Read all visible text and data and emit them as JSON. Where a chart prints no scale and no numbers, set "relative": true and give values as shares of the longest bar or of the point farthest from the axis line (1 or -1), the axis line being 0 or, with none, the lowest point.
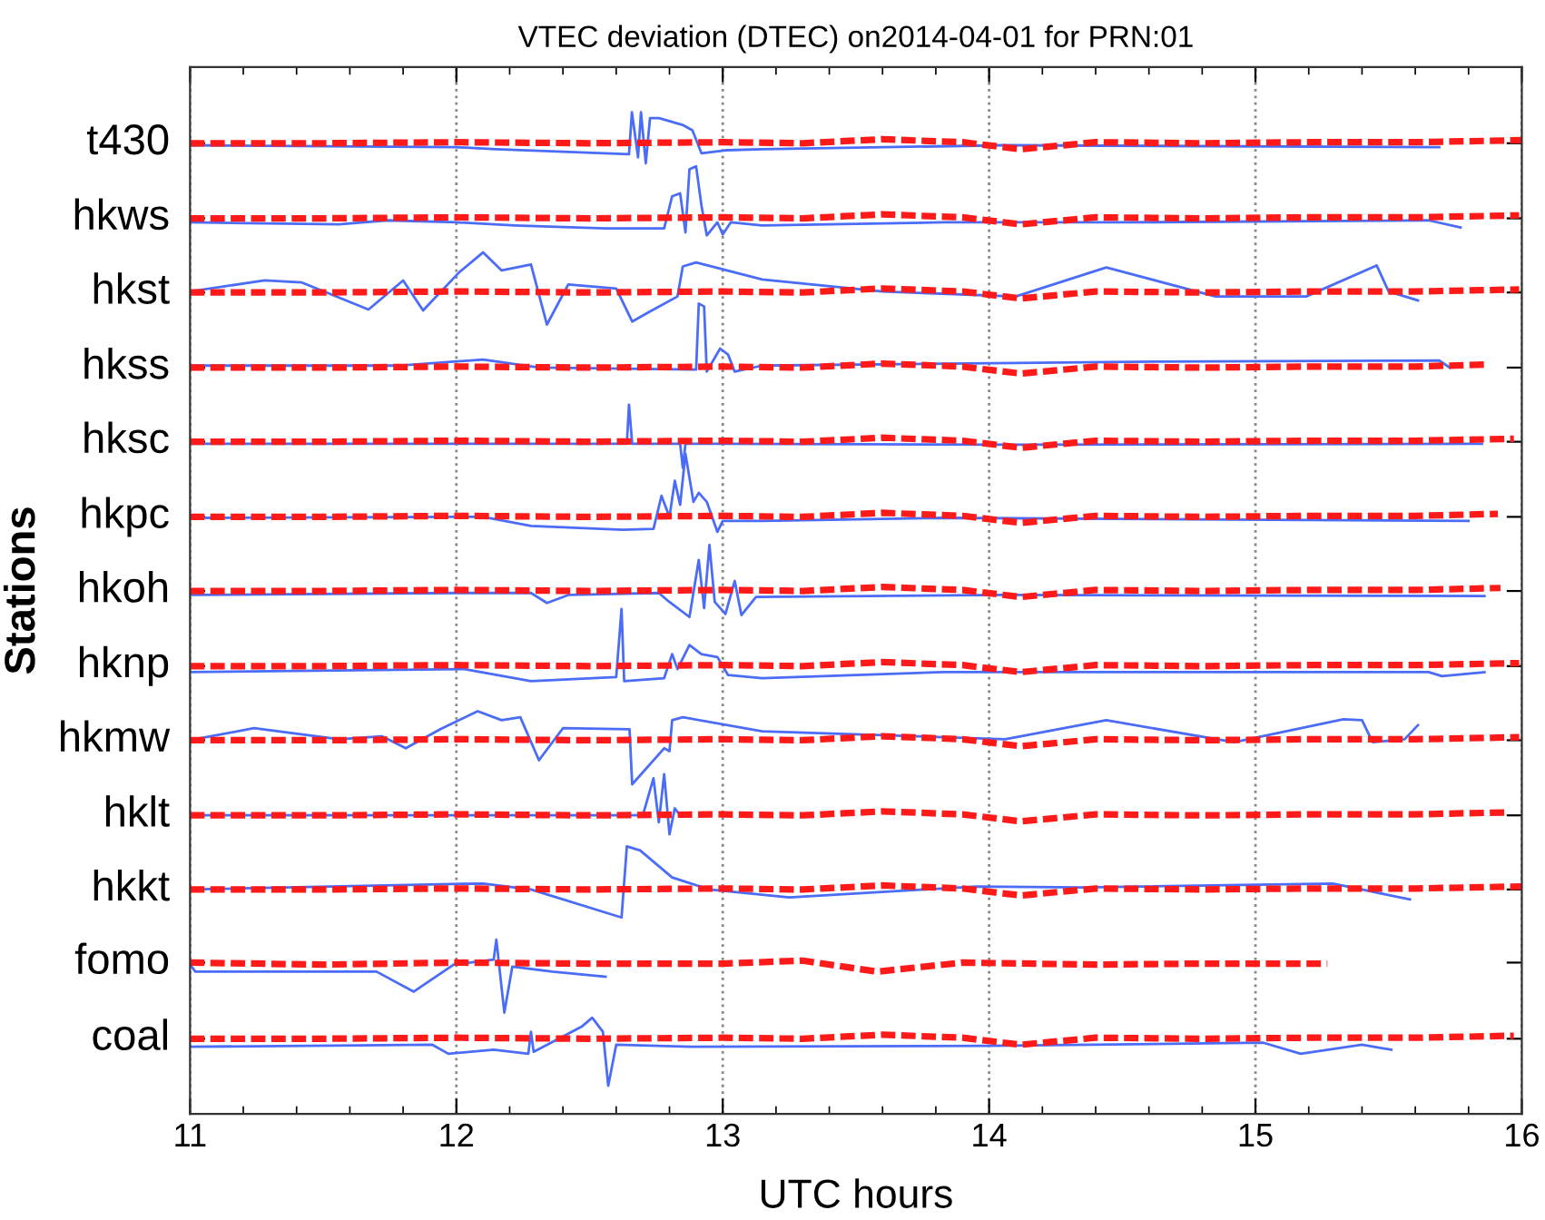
{
  "chart_data": {
    "type": "line",
    "relative": true,
    "title": "VTEC deviation (DTEC) on2014-04-01 for PRN:01",
    "xlabel": "UTC hours",
    "ylabel": "Stations",
    "xlim": [
      11,
      16
    ],
    "xticks": [
      11,
      12,
      13,
      14,
      15,
      16
    ],
    "grid": "x",
    "legend": false,
    "series": [
      {
        "color": "#4a6cf7",
        "line_style": "solid",
        "x": [
          11.0,
          12.0,
          12.15,
          12.648,
          12.659,
          12.682,
          12.693,
          12.711,
          12.727,
          12.761,
          12.852,
          12.886,
          12.92,
          13.011,
          13.148,
          14.06,
          15.69
        ],
        "values": [
          0.967,
          0.965,
          0.963,
          0.958,
          1.0,
          0.955,
          1.0,
          0.949,
          0.994,
          0.994,
          0.987,
          0.982,
          0.959,
          0.962,
          0.963,
          0.967,
          0.965
        ]
      },
      {
        "name": "t430",
        "color": "#ff1a1a",
        "line_style": "dashed",
        "x": [
          11,
          11.5,
          12,
          12.5,
          13,
          13.3,
          13.6,
          13.9,
          14.12,
          14.4,
          14.8,
          15.2,
          15.6,
          16.0
        ],
        "values": [
          0.969,
          0.969,
          0.97,
          0.969,
          0.97,
          0.969,
          0.973,
          0.97,
          0.963,
          0.97,
          0.969,
          0.97,
          0.97,
          0.972
        ]
      },
      {
        "color": "#4a6cf7",
        "line_style": "solid",
        "x": [
          11.0,
          11.56,
          11.74,
          12.0,
          12.22,
          12.56,
          12.78,
          12.81,
          12.84,
          12.86,
          12.875,
          12.9,
          12.92,
          12.94,
          12.98,
          13.0,
          13.03,
          13.148,
          13.83,
          14.51,
          15.65,
          15.77
        ],
        "values": [
          0.89,
          0.888,
          0.892,
          0.89,
          0.887,
          0.884,
          0.884,
          0.916,
          0.919,
          0.88,
          0.943,
          0.946,
          0.907,
          0.877,
          0.89,
          0.878,
          0.89,
          0.887,
          0.89,
          0.89,
          0.892,
          0.885
        ]
      },
      {
        "name": "hkws",
        "color": "#ff1a1a",
        "line_style": "dashed",
        "x": [
          11,
          11.5,
          12,
          12.5,
          13,
          13.3,
          13.6,
          13.9,
          14.12,
          14.4,
          14.8,
          15.2,
          15.6,
          15.99
        ],
        "values": [
          0.894,
          0.894,
          0.895,
          0.894,
          0.895,
          0.894,
          0.898,
          0.895,
          0.888,
          0.895,
          0.894,
          0.895,
          0.895,
          0.897
        ]
      },
      {
        "color": "#4a6cf7",
        "line_style": "solid",
        "x": [
          11.0,
          11.28,
          11.42,
          11.67,
          11.8,
          11.875,
          12.01,
          12.1,
          12.17,
          12.28,
          12.34,
          12.42,
          12.6,
          12.66,
          12.72,
          12.83,
          12.85,
          12.9,
          13.148,
          13.6,
          14.1,
          14.44,
          14.85,
          15.19,
          15.455,
          15.5,
          15.61
        ],
        "values": [
          0.821,
          0.832,
          0.83,
          0.803,
          0.832,
          0.802,
          0.84,
          0.86,
          0.842,
          0.848,
          0.788,
          0.828,
          0.824,
          0.791,
          0.8,
          0.816,
          0.846,
          0.85,
          0.833,
          0.821,
          0.816,
          0.845,
          0.816,
          0.816,
          0.847,
          0.821,
          0.812
        ]
      },
      {
        "name": "hkst",
        "color": "#ff1a1a",
        "line_style": "dashed",
        "x": [
          11,
          11.5,
          12,
          12.5,
          13,
          13.3,
          13.6,
          13.9,
          14.12,
          14.4,
          14.8,
          15.2,
          15.6,
          15.99
        ],
        "values": [
          0.82,
          0.82,
          0.821,
          0.82,
          0.821,
          0.82,
          0.824,
          0.821,
          0.814,
          0.821,
          0.82,
          0.821,
          0.821,
          0.823
        ]
      },
      {
        "color": "#4a6cf7",
        "line_style": "solid",
        "x": [
          11.0,
          11.78,
          12.1,
          12.31,
          12.9,
          12.91,
          12.93,
          12.94,
          12.99,
          13.02,
          13.045,
          13.148,
          14.63,
          15.69,
          15.73
        ],
        "values": [
          0.747,
          0.747,
          0.753,
          0.745,
          0.743,
          0.809,
          0.806,
          0.741,
          0.764,
          0.758,
          0.741,
          0.747,
          0.751,
          0.752,
          0.745
        ]
      },
      {
        "name": "hkss",
        "color": "#ff1a1a",
        "line_style": "dashed",
        "x": [
          11,
          11.5,
          12,
          12.5,
          13,
          13.3,
          13.6,
          13.9,
          14.12,
          14.4,
          14.8,
          15.2,
          15.6,
          15.86
        ],
        "values": [
          0.745,
          0.745,
          0.746,
          0.745,
          0.746,
          0.745,
          0.749,
          0.746,
          0.739,
          0.746,
          0.745,
          0.746,
          0.746,
          0.748
        ]
      },
      {
        "color": "#4a6cf7",
        "line_style": "solid",
        "x": [
          11.0,
          12.0,
          12.64,
          12.648,
          12.66,
          12.84,
          12.85,
          12.86,
          13.0,
          14.1,
          15.85
        ],
        "values": [
          0.669,
          0.669,
          0.669,
          0.708,
          0.669,
          0.669,
          0.645,
          0.669,
          0.669,
          0.668,
          0.669
        ]
      },
      {
        "name": "hksc",
        "color": "#ff1a1a",
        "line_style": "dashed",
        "x": [
          11,
          11.5,
          12,
          12.5,
          13,
          13.3,
          13.6,
          13.9,
          14.12,
          14.4,
          14.8,
          15.2,
          15.6,
          15.97
        ],
        "values": [
          0.671,
          0.671,
          0.672,
          0.671,
          0.672,
          0.671,
          0.675,
          0.672,
          0.665,
          0.672,
          0.671,
          0.672,
          0.672,
          0.674
        ]
      },
      {
        "color": "#4a6cf7",
        "line_style": "solid",
        "x": [
          11.0,
          12.1,
          12.28,
          12.625,
          12.74,
          12.77,
          12.8,
          12.82,
          12.84,
          12.86,
          12.89,
          12.91,
          12.94,
          12.98,
          13.0,
          13.148,
          13.83,
          15.8
        ],
        "values": [
          0.595,
          0.596,
          0.587,
          0.583,
          0.584,
          0.617,
          0.596,
          0.632,
          0.608,
          0.659,
          0.611,
          0.62,
          0.611,
          0.581,
          0.592,
          0.592,
          0.595,
          0.592
        ]
      },
      {
        "name": "hkpc",
        "color": "#ff1a1a",
        "line_style": "dashed",
        "x": [
          11,
          11.5,
          12,
          12.5,
          13,
          13.3,
          13.6,
          13.9,
          14.12,
          14.4,
          14.8,
          15.2,
          15.6,
          15.91
        ],
        "values": [
          0.596,
          0.596,
          0.597,
          0.596,
          0.597,
          0.596,
          0.6,
          0.597,
          0.59,
          0.597,
          0.596,
          0.597,
          0.597,
          0.599
        ]
      },
      {
        "color": "#4a6cf7",
        "line_style": "solid",
        "x": [
          11.0,
          12.0,
          12.28,
          12.34,
          12.42,
          12.76,
          12.8,
          12.875,
          12.91,
          12.93,
          12.95,
          12.97,
          13.01,
          13.045,
          13.07,
          13.125,
          14.06,
          15.86
        ],
        "values": [
          0.518,
          0.52,
          0.52,
          0.51,
          0.518,
          0.52,
          0.511,
          0.496,
          0.553,
          0.505,
          0.568,
          0.511,
          0.499,
          0.532,
          0.498,
          0.516,
          0.518,
          0.517
        ]
      },
      {
        "name": "hkoh",
        "color": "#ff1a1a",
        "line_style": "dashed",
        "x": [
          11,
          11.5,
          12,
          12.5,
          13,
          13.3,
          13.6,
          13.9,
          14.12,
          14.4,
          14.8,
          15.2,
          15.6,
          15.92
        ],
        "values": [
          0.522,
          0.522,
          0.523,
          0.522,
          0.523,
          0.522,
          0.526,
          0.523,
          0.516,
          0.523,
          0.522,
          0.523,
          0.523,
          0.525
        ]
      },
      {
        "color": "#4a6cf7",
        "line_style": "solid",
        "x": [
          11.0,
          12.03,
          12.28,
          12.6,
          12.62,
          12.63,
          12.78,
          12.81,
          12.83,
          12.875,
          12.92,
          12.98,
          13.02,
          13.148,
          13.83,
          15.65,
          15.7,
          15.86
        ],
        "values": [
          0.441,
          0.444,
          0.432,
          0.436,
          0.504,
          0.432,
          0.435,
          0.459,
          0.444,
          0.468,
          0.459,
          0.456,
          0.438,
          0.435,
          0.441,
          0.441,
          0.437,
          0.441
        ]
      },
      {
        "name": "hknp",
        "color": "#ff1a1a",
        "line_style": "dashed",
        "x": [
          11,
          11.5,
          12,
          12.5,
          13,
          13.3,
          13.6,
          13.9,
          14.12,
          14.4,
          14.8,
          15.2,
          15.6,
          15.99
        ],
        "values": [
          0.447,
          0.447,
          0.448,
          0.447,
          0.448,
          0.447,
          0.451,
          0.448,
          0.441,
          0.448,
          0.447,
          0.448,
          0.448,
          0.45
        ]
      },
      {
        "color": "#4a6cf7",
        "line_style": "solid",
        "x": [
          11.0,
          11.24,
          11.56,
          11.72,
          11.81,
          11.94,
          12.08,
          12.17,
          12.24,
          12.31,
          12.4,
          12.65,
          12.66,
          12.78,
          12.8,
          12.81,
          12.85,
          13.148,
          14.06,
          14.44,
          14.92,
          15.33,
          15.4,
          15.44,
          15.56,
          15.61
        ],
        "values": [
          0.373,
          0.385,
          0.374,
          0.377,
          0.365,
          0.384,
          0.402,
          0.393,
          0.396,
          0.353,
          0.385,
          0.384,
          0.329,
          0.365,
          0.362,
          0.393,
          0.396,
          0.382,
          0.374,
          0.393,
          0.371,
          0.394,
          0.393,
          0.371,
          0.374,
          0.388
        ]
      },
      {
        "name": "hkmw",
        "color": "#ff1a1a",
        "line_style": "dashed",
        "x": [
          11,
          11.5,
          12,
          12.5,
          13,
          13.3,
          13.6,
          13.9,
          14.12,
          14.4,
          14.8,
          15.2,
          15.6,
          15.99
        ],
        "values": [
          0.373,
          0.373,
          0.374,
          0.373,
          0.374,
          0.373,
          0.377,
          0.374,
          0.367,
          0.374,
          0.373,
          0.374,
          0.374,
          0.376
        ]
      },
      {
        "color": "#4a6cf7",
        "line_style": "solid",
        "x": [
          11.0,
          12.0,
          12.5,
          12.7,
          12.74,
          12.76,
          12.78,
          12.8,
          12.82,
          12.84
        ],
        "values": [
          0.298,
          0.298,
          0.298,
          0.298,
          0.335,
          0.291,
          0.339,
          0.279,
          0.305,
          0.298
        ]
      },
      {
        "name": "hklt",
        "color": "#ff1a1a",
        "line_style": "dashed",
        "x": [
          11,
          11.5,
          12,
          12.5,
          13,
          13.3,
          13.6,
          13.9,
          14.12,
          14.4,
          14.8,
          15.2,
          15.6,
          15.95
        ],
        "values": [
          0.298,
          0.298,
          0.299,
          0.298,
          0.299,
          0.298,
          0.302,
          0.299,
          0.292,
          0.299,
          0.298,
          0.299,
          0.299,
          0.301
        ]
      },
      {
        "color": "#4a6cf7",
        "line_style": "solid",
        "x": [
          11.0,
          12.1,
          12.28,
          12.62,
          12.64,
          12.69,
          12.81,
          12.95,
          13.25,
          13.95,
          14.36,
          15.29,
          15.4,
          15.58
        ],
        "values": [
          0.224,
          0.23,
          0.224,
          0.196,
          0.267,
          0.263,
          0.236,
          0.224,
          0.216,
          0.227,
          0.226,
          0.23,
          0.224,
          0.214
        ]
      },
      {
        "name": "hkkt",
        "color": "#ff1a1a",
        "line_style": "dashed",
        "x": [
          11,
          11.5,
          12,
          12.5,
          13,
          13.3,
          13.6,
          13.9,
          14.12,
          14.4,
          14.8,
          15.2,
          15.6,
          16.0
        ],
        "values": [
          0.224,
          0.224,
          0.225,
          0.224,
          0.225,
          0.224,
          0.228,
          0.225,
          0.218,
          0.225,
          0.224,
          0.225,
          0.225,
          0.227
        ]
      },
      {
        "color": "#4a6cf7",
        "line_style": "solid",
        "x": [
          11.0,
          11.02,
          11.7,
          11.84,
          11.99,
          12.14,
          12.15,
          12.18,
          12.21,
          12.36,
          12.56
        ],
        "values": [
          0.149,
          0.142,
          0.142,
          0.122,
          0.149,
          0.154,
          0.174,
          0.101,
          0.147,
          0.142,
          0.137
        ]
      },
      {
        "name": "fomo",
        "color": "#ff1a1a",
        "line_style": "dashed",
        "x": [
          11,
          11.5,
          12,
          12.5,
          13,
          13.3,
          13.58,
          13.9,
          14.4,
          14.8,
          15.27
        ],
        "values": [
          0.151,
          0.149,
          0.151,
          0.15,
          0.15,
          0.153,
          0.142,
          0.151,
          0.149,
          0.15,
          0.15
        ]
      },
      {
        "color": "#4a6cf7",
        "line_style": "solid",
        "x": [
          11.0,
          11.91,
          11.97,
          12.14,
          12.27,
          12.28,
          12.29,
          12.47,
          12.51,
          12.55,
          12.57,
          12.6,
          12.88,
          13.99,
          15.03,
          15.17,
          15.4,
          15.51
        ],
        "values": [
          0.067,
          0.069,
          0.06,
          0.064,
          0.06,
          0.082,
          0.062,
          0.087,
          0.096,
          0.082,
          0.028,
          0.069,
          0.067,
          0.068,
          0.071,
          0.06,
          0.069,
          0.064
        ]
      },
      {
        "name": "coal",
        "color": "#ff1a1a",
        "line_style": "dashed",
        "x": [
          11,
          11.5,
          12,
          12.5,
          13,
          13.3,
          13.6,
          13.9,
          14.12,
          14.4,
          14.8,
          15.2,
          15.6,
          15.97
        ],
        "values": [
          0.075,
          0.075,
          0.076,
          0.075,
          0.076,
          0.075,
          0.079,
          0.076,
          0.069,
          0.076,
          0.075,
          0.076,
          0.076,
          0.078
        ]
      }
    ]
  }
}
